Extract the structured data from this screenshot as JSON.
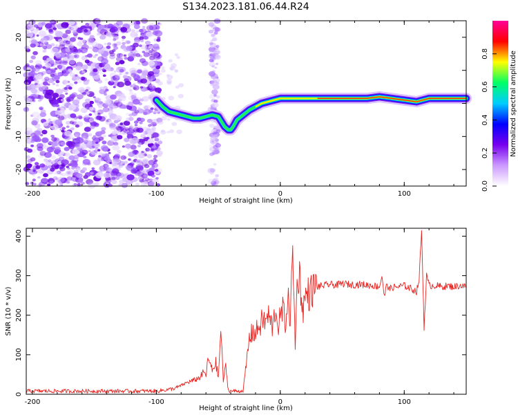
{
  "title": "S134.2023.181.06.44.R24",
  "chart_data": [
    {
      "type": "heatmap",
      "xlabel": "Height of straight line (km)",
      "ylabel": "Frequency (Hz)",
      "xlim": [
        -205,
        150
      ],
      "ylim": [
        -25,
        25
      ],
      "xticks": [
        -200,
        -100,
        0,
        100
      ],
      "yticks": [
        -20,
        -10,
        0,
        10,
        20
      ],
      "colorbar": {
        "label": "Normalized spectral amplitude",
        "range": [
          0,
          1
        ],
        "ticks": [
          "0.0",
          "0.2",
          "0.4",
          "0.6",
          "0.8"
        ],
        "colormap": [
          "#ffffff",
          "#cc99ff",
          "#7700ee",
          "#0000ff",
          "#00ccff",
          "#00ff66",
          "#ffff00",
          "#ff0000",
          "#ff0099"
        ]
      },
      "ridge": {
        "x": [
          -100,
          -95,
          -90,
          -85,
          -80,
          -75,
          -70,
          -65,
          -60,
          -55,
          -50,
          -45,
          -42,
          -40,
          -38,
          -35,
          -30,
          -25,
          -20,
          -15,
          -10,
          -5,
          0,
          10,
          20,
          30,
          40,
          50,
          60,
          70,
          80,
          90,
          100,
          110,
          120,
          130,
          140,
          150
        ],
        "y": [
          1,
          -1,
          -2.5,
          -3,
          -3.5,
          -4,
          -4.5,
          -4.5,
          -4,
          -3.5,
          -4,
          -7,
          -8,
          -8,
          -7,
          -5,
          -3.5,
          -2,
          -1,
          0,
          0.5,
          1,
          1.5,
          1.5,
          1.5,
          1.5,
          1.5,
          1.5,
          1.5,
          1.5,
          2,
          1.5,
          1,
          0.5,
          1.5,
          1.5,
          1.5,
          1.5
        ]
      }
    },
    {
      "type": "line",
      "xlabel": "Height of straight line (km)",
      "ylabel": "SNR (10 * v/v)",
      "xlim": [
        -205,
        150
      ],
      "ylim": [
        0,
        420
      ],
      "xticks": [
        -200,
        -100,
        0,
        100
      ],
      "yticks": [
        0,
        100,
        200,
        300,
        400
      ],
      "series": [
        {
          "color": "#e8231f",
          "x": [
            -205,
            -180,
            -160,
            -140,
            -120,
            -100,
            -90,
            -85,
            -80,
            -75,
            -70,
            -65,
            -62,
            -60,
            -58,
            -55,
            -52,
            -50,
            -48,
            -46,
            -44,
            -42,
            -40,
            -38,
            -36,
            -34,
            -32,
            -30,
            -28,
            -25,
            -22,
            -20,
            -18,
            -16,
            -14,
            -12,
            -10,
            -8,
            -6,
            -4,
            -2,
            0,
            2,
            4,
            6,
            8,
            10,
            12,
            14,
            16,
            18,
            20,
            22,
            24,
            26,
            28,
            30,
            35,
            40,
            45,
            50,
            55,
            60,
            65,
            70,
            75,
            80,
            82,
            84,
            86,
            88,
            90,
            95,
            100,
            105,
            110,
            112,
            114,
            116,
            118,
            120,
            125,
            130,
            135,
            140,
            145,
            150
          ],
          "y": [
            8,
            8,
            8,
            8,
            8,
            8,
            12,
            15,
            22,
            30,
            35,
            42,
            55,
            50,
            90,
            60,
            80,
            40,
            165,
            35,
            70,
            10,
            8,
            8,
            8,
            8,
            8,
            10,
            60,
            140,
            160,
            150,
            170,
            175,
            190,
            180,
            200,
            185,
            165,
            220,
            175,
            190,
            215,
            180,
            240,
            195,
            350,
            130,
            310,
            290,
            210,
            245,
            255,
            255,
            265,
            270,
            272,
            275,
            278,
            276,
            280,
            278,
            277,
            278,
            276,
            275,
            272,
            300,
            245,
            280,
            265,
            270,
            272,
            275,
            268,
            260,
            290,
            415,
            170,
            300,
            275,
            275,
            272,
            274,
            272,
            275,
            272
          ]
        }
      ]
    }
  ]
}
